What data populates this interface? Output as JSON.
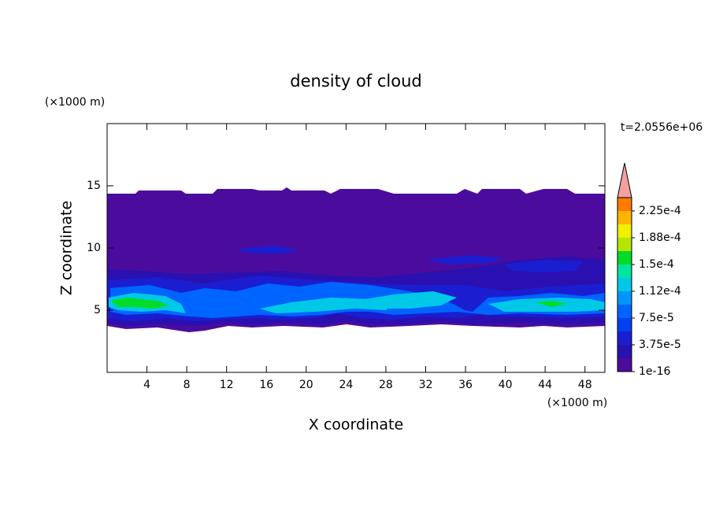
{
  "chart_data": {
    "type": "contour",
    "title": "density of cloud",
    "x_label": "X coordinate",
    "y_label": "Z coordinate",
    "x_unit": "(×1000 m)",
    "y_unit": "(×1000 m)",
    "time_label": "t=2.0556e+06",
    "xlim": [
      0,
      50
    ],
    "ylim": [
      0,
      20
    ],
    "xticks": [
      4,
      8,
      12,
      16,
      20,
      24,
      28,
      32,
      36,
      40,
      44,
      48
    ],
    "yticks": [
      5,
      10,
      15
    ],
    "colorbar": {
      "levels": [
        1e-16,
        1.875e-05,
        3.75e-05,
        5.625e-05,
        7.5e-05,
        9.375e-05,
        0.0001125,
        0.00013125,
        0.00015,
        0.00016875,
        0.0001875,
        0.00020625,
        0.000225,
        0.00024375
      ],
      "colors": [
        "#4b0c9e",
        "#2a10b0",
        "#1a1ed0",
        "#0040f0",
        "#0064ff",
        "#0096ff",
        "#00c8e6",
        "#00e6a0",
        "#00dc28",
        "#b4e600",
        "#f0f000",
        "#ffb400",
        "#ff7800"
      ],
      "extend_color": "#f4a0a0",
      "ticks": [
        {
          "value": 1e-16,
          "label": "1e-16"
        },
        {
          "value": 3.75e-05,
          "label": "3.75e-5"
        },
        {
          "value": 7.5e-05,
          "label": "7.5e-5"
        },
        {
          "value": 0.0001125,
          "label": "1.12e-4"
        },
        {
          "value": 0.00015,
          "label": "1.5e-4"
        },
        {
          "value": 0.0001875,
          "label": "1.88e-4"
        },
        {
          "value": 0.000225,
          "label": "2.25e-4"
        }
      ]
    }
  }
}
